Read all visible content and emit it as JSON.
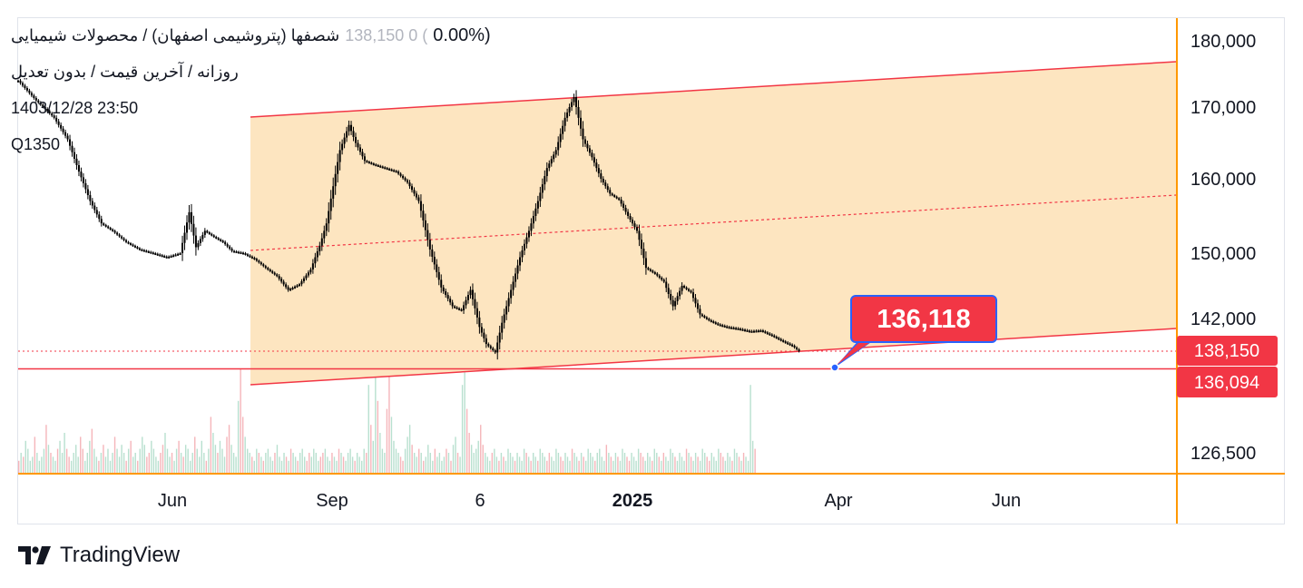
{
  "legend": {
    "title": "شصفها (پتروشیمی اصفهان) / محصولات شیمیایی",
    "change_faded": "138,150  0 (",
    "change_pct": "0.00%)",
    "subtitle": "روزانه / آخرین قیمت / بدون تعدیل",
    "datetime": "1403/12/28 23:50",
    "code": "Q1350"
  },
  "branding": {
    "name": "TradingView",
    "icon": "tradingview-logo-icon"
  },
  "colors": {
    "channel_fill": "#fde5c0",
    "channel_line": "#f23645",
    "candle": "#000000",
    "volume_up": "#b8e0cf",
    "volume_down": "#f5b5ba",
    "axis_line": "#ff9800",
    "price_label_bg": "#f23645",
    "callout_bg": "#f23645",
    "callout_border": "#2962ff",
    "frame": "#e0e3eb"
  },
  "chart_data": {
    "type": "candlestick",
    "y_ticks": [
      "180,000",
      "170,000",
      "160,000",
      "150,000",
      "142,000",
      "126,500"
    ],
    "x_ticks": [
      {
        "label": "Jun",
        "bold": false
      },
      {
        "label": "Sep",
        "bold": false
      },
      {
        "label": "6",
        "bold": false
      },
      {
        "label": "2025",
        "bold": true
      },
      {
        "label": "Apr",
        "bold": false
      },
      {
        "label": "Jun",
        "bold": false
      }
    ],
    "last_price": 138150,
    "last_price_label": "138,150",
    "support_level": 136094,
    "support_level_label": "136,094",
    "callout": {
      "value": 136118,
      "label": "136,118"
    },
    "channel": {
      "upper_start": 168800,
      "upper_end": 176800,
      "mid_start": 150200,
      "mid_end": 158000,
      "lower_start": 133600,
      "lower_end": 141200
    },
    "price_path": [
      [
        0,
        174000
      ],
      [
        8,
        171000
      ],
      [
        16,
        168500
      ],
      [
        22,
        165500
      ],
      [
        27,
        161000
      ],
      [
        32,
        157000
      ],
      [
        37,
        154000
      ],
      [
        42,
        153000
      ],
      [
        48,
        151500
      ],
      [
        54,
        150500
      ],
      [
        60,
        150000
      ],
      [
        66,
        149500
      ],
      [
        72,
        150000
      ],
      [
        76,
        155500
      ],
      [
        79,
        150800
      ],
      [
        83,
        153000
      ],
      [
        87,
        152200
      ],
      [
        91,
        151500
      ],
      [
        95,
        150300
      ],
      [
        100,
        150000
      ],
      [
        105,
        149300
      ],
      [
        110,
        148200
      ],
      [
        115,
        147200
      ],
      [
        120,
        145500
      ],
      [
        125,
        146200
      ],
      [
        130,
        148000
      ],
      [
        134,
        151000
      ],
      [
        137,
        154000
      ],
      [
        140,
        159000
      ],
      [
        143,
        164000
      ],
      [
        147,
        167500
      ],
      [
        150,
        165000
      ],
      [
        154,
        162500
      ],
      [
        158,
        162000
      ],
      [
        163,
        161500
      ],
      [
        168,
        161000
      ],
      [
        173,
        159500
      ],
      [
        178,
        157000
      ],
      [
        183,
        150500
      ],
      [
        188,
        145800
      ],
      [
        193,
        143500
      ],
      [
        197,
        143000
      ],
      [
        201,
        145500
      ],
      [
        205,
        141000
      ],
      [
        208,
        139000
      ],
      [
        212,
        138000
      ],
      [
        215,
        141500
      ],
      [
        219,
        145500
      ],
      [
        223,
        149500
      ],
      [
        227,
        153000
      ],
      [
        231,
        157000
      ],
      [
        235,
        161500
      ],
      [
        239,
        164000
      ],
      [
        243,
        168500
      ],
      [
        247,
        171500
      ],
      [
        251,
        165500
      ],
      [
        255,
        163000
      ],
      [
        259,
        160000
      ],
      [
        263,
        158000
      ],
      [
        267,
        157200
      ],
      [
        271,
        155000
      ],
      [
        275,
        153000
      ],
      [
        279,
        148200
      ],
      [
        283,
        147500
      ],
      [
        287,
        146500
      ],
      [
        291,
        143500
      ],
      [
        295,
        146000
      ],
      [
        299,
        145200
      ],
      [
        303,
        142500
      ],
      [
        307,
        141800
      ],
      [
        311,
        141300
      ],
      [
        315,
        141000
      ],
      [
        320,
        140800
      ],
      [
        325,
        140500
      ],
      [
        330,
        140600
      ],
      [
        335,
        140000
      ],
      [
        340,
        139300
      ],
      [
        344,
        138800
      ],
      [
        347,
        138150
      ]
    ],
    "volume": [
      3,
      5,
      4,
      8,
      6,
      3,
      4,
      9,
      5,
      3,
      4,
      6,
      12,
      7,
      5,
      4,
      3,
      6,
      8,
      5,
      10,
      6,
      4,
      3,
      5,
      7,
      4,
      9,
      6,
      3,
      5,
      8,
      11,
      6,
      4,
      3,
      5,
      7,
      4,
      6,
      3,
      5,
      9,
      6,
      4,
      7,
      5,
      3,
      6,
      8,
      4,
      5,
      3,
      6,
      9,
      7,
      4,
      5,
      8,
      6,
      4,
      3,
      5,
      7,
      10,
      6,
      4,
      5,
      3,
      6,
      8,
      5,
      4,
      7,
      6,
      3,
      5,
      9,
      6,
      4,
      8,
      5,
      3,
      6,
      14,
      10,
      7,
      5,
      8,
      6,
      4,
      9,
      12,
      7,
      5,
      4,
      18,
      26,
      14,
      9,
      6,
      5,
      4,
      3,
      6,
      5,
      4,
      3,
      5,
      6,
      4,
      3,
      5,
      7,
      4,
      3,
      5,
      4,
      3,
      6,
      5,
      4,
      3,
      5,
      6,
      4,
      3,
      5,
      4,
      6,
      5,
      3,
      4,
      5,
      6,
      4,
      3,
      5,
      4,
      3,
      6,
      5,
      4,
      3,
      5,
      6,
      4,
      3,
      5,
      4,
      3,
      6,
      5,
      22,
      12,
      8,
      30,
      18,
      10,
      6,
      5,
      16,
      26,
      14,
      8,
      6,
      5,
      4,
      3,
      6,
      9,
      12,
      7,
      5,
      4,
      6,
      5,
      3,
      4,
      7,
      5,
      3,
      6,
      4,
      5,
      3,
      4,
      6,
      5,
      3,
      7,
      9,
      5,
      4,
      22,
      28,
      16,
      10,
      7,
      5,
      6,
      8,
      12,
      7,
      5,
      4,
      3,
      5,
      6,
      4,
      3,
      5,
      4,
      3,
      6,
      5,
      4,
      3,
      5,
      4,
      3,
      6,
      5,
      4,
      3,
      5,
      4,
      3,
      6,
      5,
      4,
      3,
      5,
      4,
      3,
      6,
      5,
      4,
      3,
      5,
      4,
      3,
      6,
      5,
      4,
      3,
      5,
      4,
      3,
      6,
      5,
      4,
      3,
      5,
      6,
      4,
      3,
      7,
      5,
      4,
      3,
      5,
      4,
      3,
      6,
      5,
      4,
      3,
      5,
      4,
      3,
      6,
      5,
      4,
      3,
      5,
      4,
      3,
      6,
      5,
      4,
      3,
      5,
      4,
      3,
      6,
      5,
      4,
      3,
      5,
      4,
      3,
      6,
      5,
      4,
      3,
      5,
      4,
      3,
      6,
      5,
      4,
      3,
      5,
      4,
      3,
      6,
      5,
      4,
      3,
      5,
      4,
      3,
      6,
      5,
      4,
      3,
      5,
      4,
      3,
      22,
      8,
      6
    ]
  }
}
